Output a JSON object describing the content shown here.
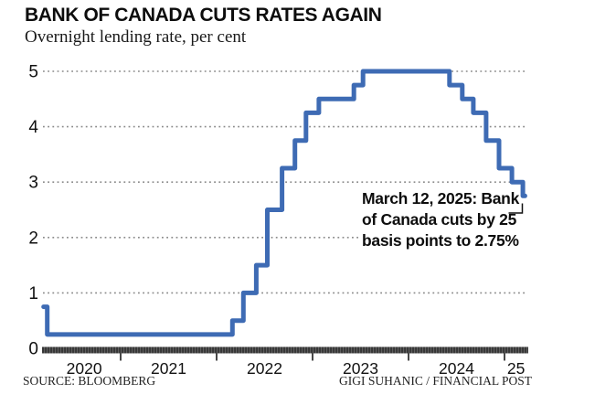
{
  "header": {
    "title": "BANK OF CANADA CUTS RATES AGAIN",
    "subtitle": "Overnight lending rate, per cent"
  },
  "annotation": {
    "text": "March 12, 2025: Bank\nof Canada cuts by 25\nbasis points to 2.75%"
  },
  "footer": {
    "source": "SOURCE: BLOOMBERG",
    "credit": "GIGI SUHANIC / FINANCIAL POST"
  },
  "colors": {
    "line": "#3E6BB4",
    "gridline": "#8a8a8a",
    "axis_bar": "#363636",
    "axis_bar_stripe": "#5e5e5e",
    "tick": "#1a1a1a",
    "text": "#111111",
    "connector": "#111111"
  },
  "chart_data": {
    "type": "line",
    "subtype": "step",
    "title": "BANK OF CANADA CUTS RATES AGAIN",
    "ylabel": "Overnight lending rate, per cent",
    "ylim": [
      0,
      5.3
    ],
    "y_ticks": [
      0,
      1,
      2,
      3,
      4,
      5
    ],
    "grid": "dotted-horizontal",
    "legend": "none",
    "x_start": "2020-03-13",
    "x_end": "2025-03-20",
    "x_tick_years": [
      2021,
      2022,
      2023,
      2024,
      2025
    ],
    "x_labels": [
      {
        "label": "2020",
        "t": 2020.62
      },
      {
        "label": "2021",
        "t": 2021.5
      },
      {
        "label": "2022",
        "t": 2022.5
      },
      {
        "label": "2023",
        "t": 2023.5
      },
      {
        "label": "2024",
        "t": 2024.5
      },
      {
        "label": "25",
        "t": 2025.12
      }
    ],
    "points": [
      [
        "2020-03-13",
        0.75
      ],
      [
        "2020-03-27",
        0.25
      ],
      [
        "2022-03-02",
        0.5
      ],
      [
        "2022-04-13",
        1.0
      ],
      [
        "2022-06-01",
        1.5
      ],
      [
        "2022-07-13",
        2.5
      ],
      [
        "2022-09-07",
        3.25
      ],
      [
        "2022-10-26",
        3.75
      ],
      [
        "2022-12-07",
        4.25
      ],
      [
        "2023-01-25",
        4.5
      ],
      [
        "2023-06-07",
        4.75
      ],
      [
        "2023-07-12",
        5.0
      ],
      [
        "2024-06-05",
        4.75
      ],
      [
        "2024-07-24",
        4.5
      ],
      [
        "2024-09-04",
        4.25
      ],
      [
        "2024-10-23",
        3.75
      ],
      [
        "2024-12-11",
        3.25
      ],
      [
        "2025-01-29",
        3.0
      ],
      [
        "2025-03-12",
        2.75
      ]
    ]
  }
}
